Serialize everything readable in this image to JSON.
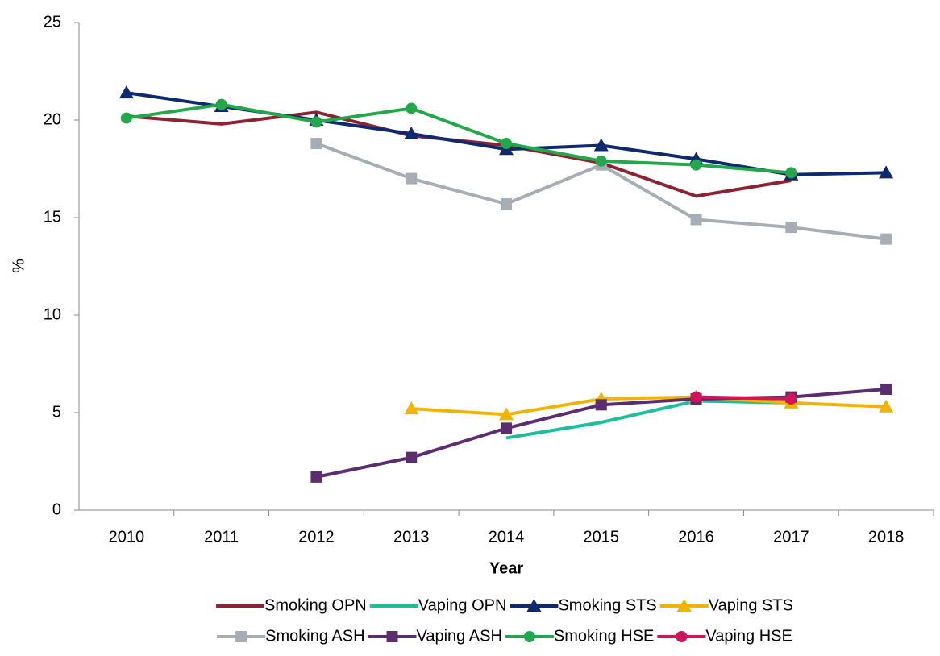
{
  "chart_data": {
    "type": "line",
    "x_label": "Year",
    "y_label": "%",
    "categories": [
      "2010",
      "2011",
      "2012",
      "2013",
      "2014",
      "2015",
      "2016",
      "2017",
      "2018"
    ],
    "ylim": [
      0,
      25
    ],
    "yticks": [
      0,
      5,
      10,
      15,
      20,
      25
    ],
    "legend": "bottom",
    "series": [
      {
        "name": "Smoking OPN",
        "color": "#8b2332",
        "marker": "none",
        "values": [
          20.2,
          19.8,
          20.4,
          19.2,
          18.7,
          17.8,
          16.1,
          16.9,
          null
        ]
      },
      {
        "name": "Vaping OPN",
        "color": "#1dbf9b",
        "marker": "none",
        "values": [
          null,
          null,
          null,
          null,
          3.7,
          4.5,
          5.6,
          5.5,
          null
        ]
      },
      {
        "name": "Smoking STS",
        "color": "#0d2a6e",
        "marker": "triangle",
        "values": [
          21.4,
          20.7,
          20.0,
          19.3,
          18.5,
          18.7,
          18.0,
          17.2,
          17.3
        ]
      },
      {
        "name": "Vaping STS",
        "color": "#f0b400",
        "marker": "triangle",
        "values": [
          null,
          null,
          null,
          5.2,
          4.9,
          5.7,
          5.8,
          5.5,
          5.3
        ]
      },
      {
        "name": "Smoking ASH",
        "color": "#a6adb4",
        "marker": "square",
        "values": [
          null,
          null,
          18.8,
          17.0,
          15.7,
          17.7,
          14.9,
          14.5,
          13.9
        ]
      },
      {
        "name": "Vaping ASH",
        "color": "#5b2c6f",
        "marker": "square",
        "values": [
          null,
          null,
          1.7,
          2.7,
          4.2,
          5.4,
          5.7,
          5.8,
          6.2
        ]
      },
      {
        "name": "Smoking HSE",
        "color": "#22a84a",
        "marker": "circle",
        "values": [
          20.1,
          20.8,
          19.9,
          20.6,
          18.8,
          17.9,
          17.7,
          17.3,
          null
        ]
      },
      {
        "name": "Vaping HSE",
        "color": "#d4145a",
        "marker": "circle",
        "values": [
          null,
          null,
          null,
          null,
          null,
          null,
          5.8,
          5.7,
          null
        ]
      }
    ]
  }
}
